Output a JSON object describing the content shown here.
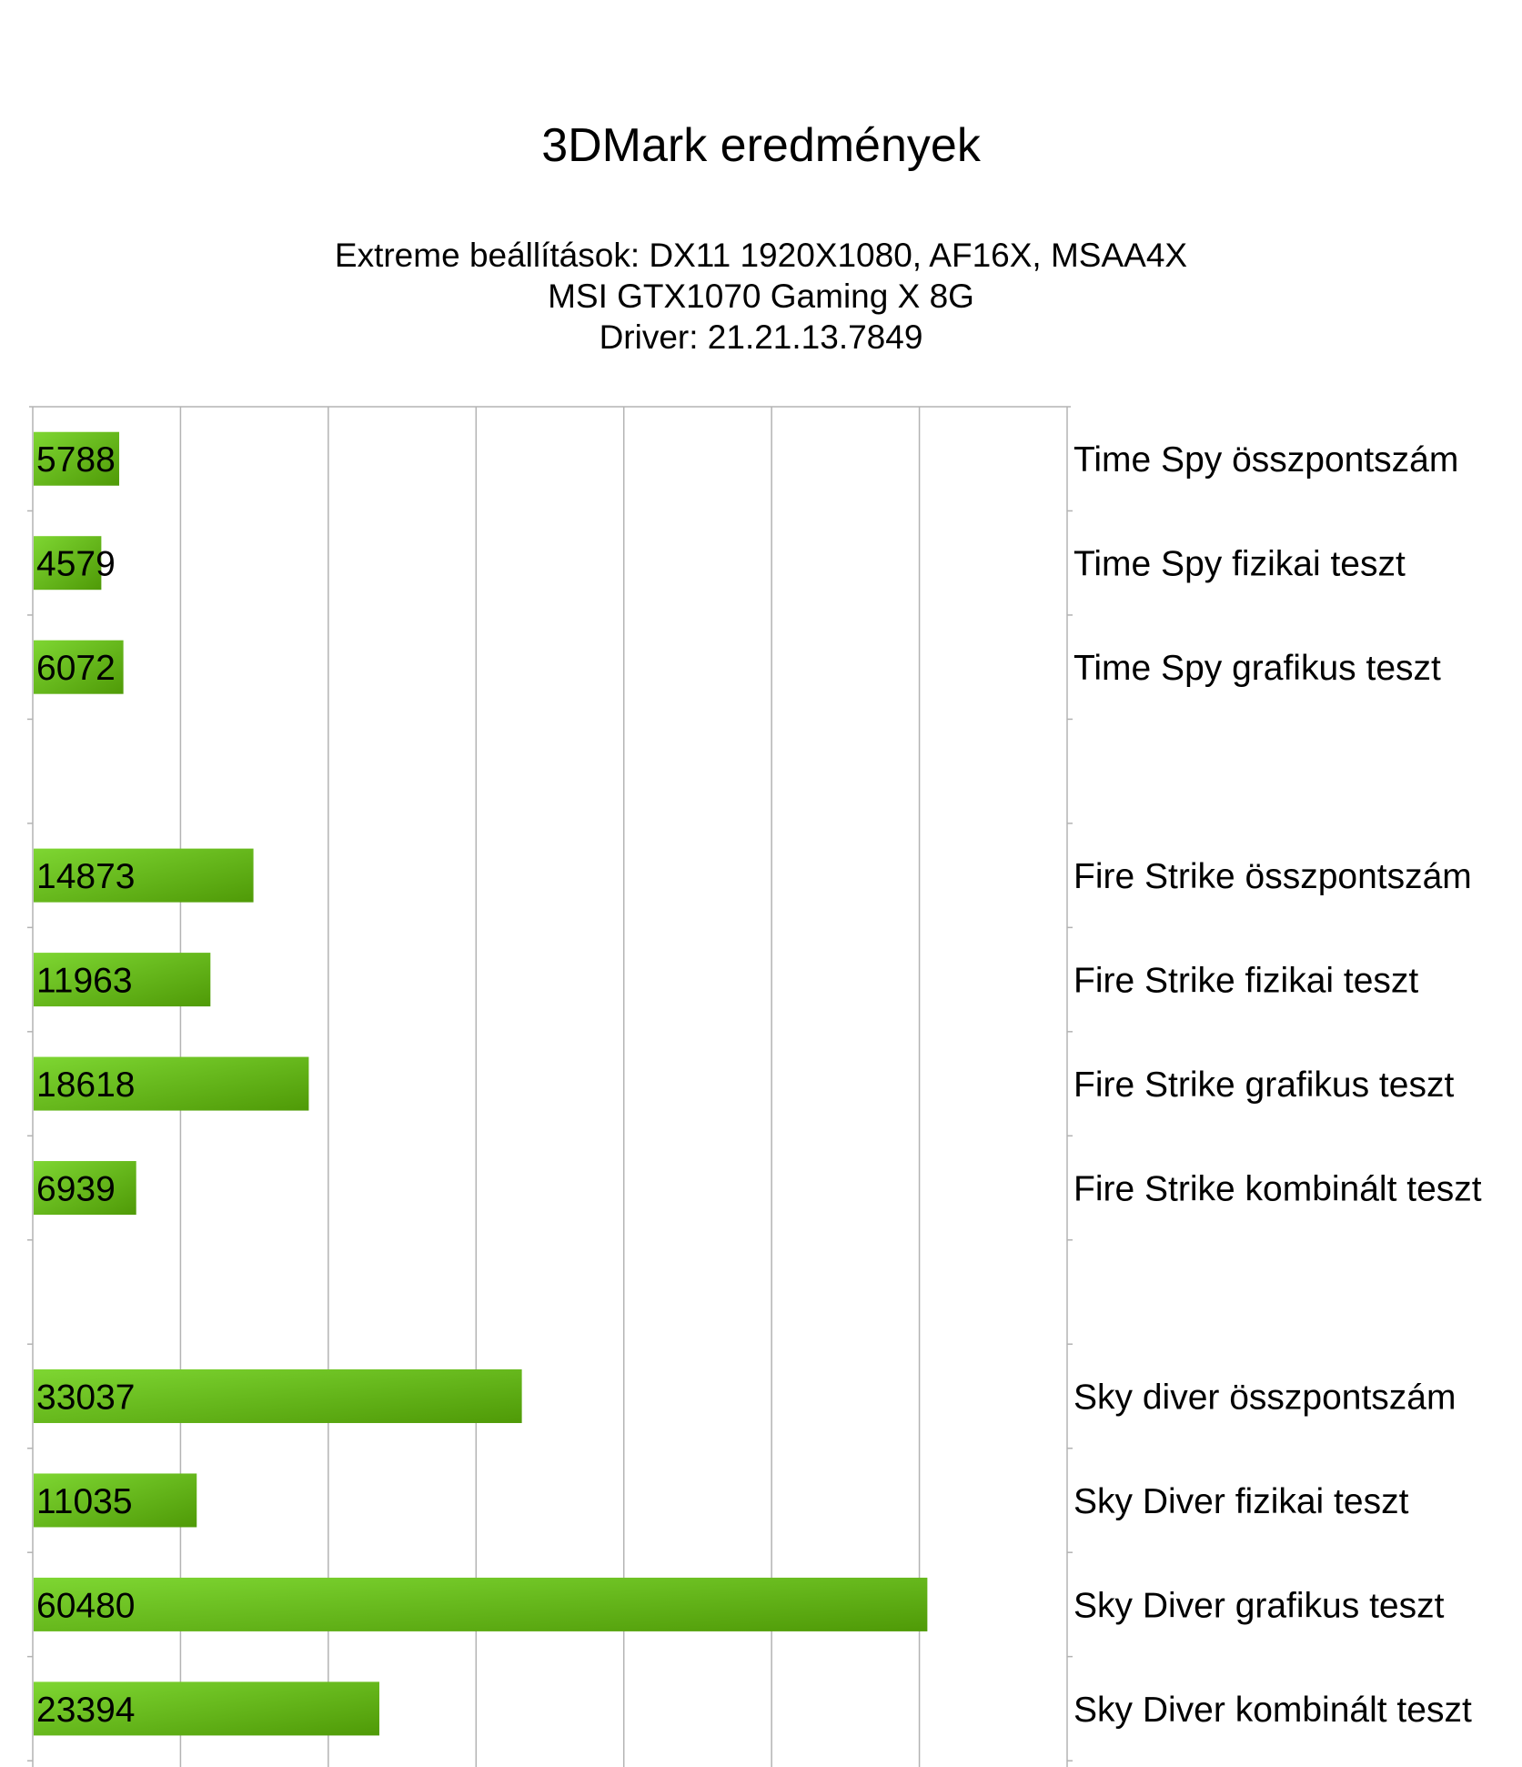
{
  "chart_data": {
    "type": "bar",
    "orientation": "horizontal",
    "title": "3DMark eredmények",
    "subtitle": [
      "Extreme beállítások: DX11 1920X1080, AF16X, MSAA4X",
      "MSI GTX1070 Gaming X 8G",
      "Driver: 21.21.13.7849"
    ],
    "categories": [
      "Time Spy összpontszám",
      "Time Spy fizikai teszt",
      "Time Spy grafikus teszt",
      "",
      "Fire Strike összpontszám",
      "Fire Strike fizikai teszt",
      "Fire Strike grafikus teszt",
      "Fire Strike kombinált teszt",
      "",
      "Sky diver összpontszám",
      "Sky Diver fizikai teszt",
      "Sky Diver grafikus teszt",
      "Sky Diver kombinált teszt"
    ],
    "values": [
      5788,
      4579,
      6072,
      null,
      14873,
      11963,
      18618,
      6939,
      null,
      33037,
      11035,
      60480,
      23394
    ],
    "value_labels": [
      "5788",
      "4579",
      "6072",
      "",
      "14873",
      "11963",
      "18618",
      "6939",
      "",
      "33037",
      "11035",
      "60480",
      "23394"
    ],
    "xlim": [
      0,
      70000
    ],
    "x_gridline_step": 10000,
    "grid": true,
    "legend": "none",
    "colors": {
      "bar_light": "#7ed632",
      "bar_dark": "#4f9a07",
      "grid": "#b3b3b3"
    }
  }
}
